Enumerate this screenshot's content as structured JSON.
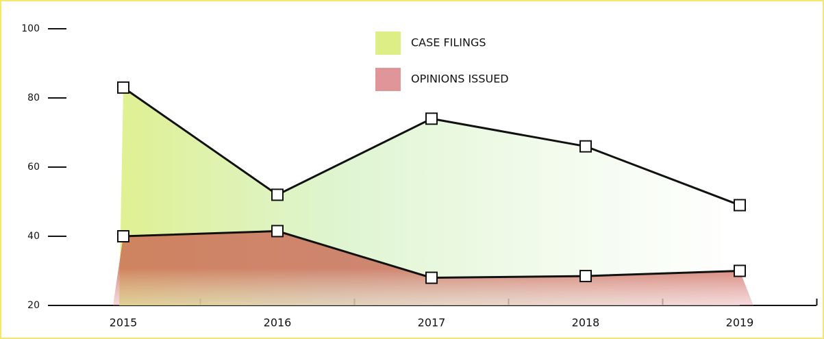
{
  "chart_data": {
    "type": "area",
    "categories": [
      "2015",
      "2016",
      "2017",
      "2018",
      "2019"
    ],
    "series": [
      {
        "name": "CASE FILINGS",
        "color": "#dcee85",
        "values": [
          83,
          52,
          74,
          66,
          49
        ]
      },
      {
        "name": "OPINIONS ISSUED",
        "color": "#e09598",
        "values": [
          40,
          41.5,
          28,
          28.5,
          30
        ]
      }
    ],
    "ylim": [
      20,
      100
    ],
    "yticks": [
      20,
      40,
      60,
      80,
      100
    ]
  }
}
